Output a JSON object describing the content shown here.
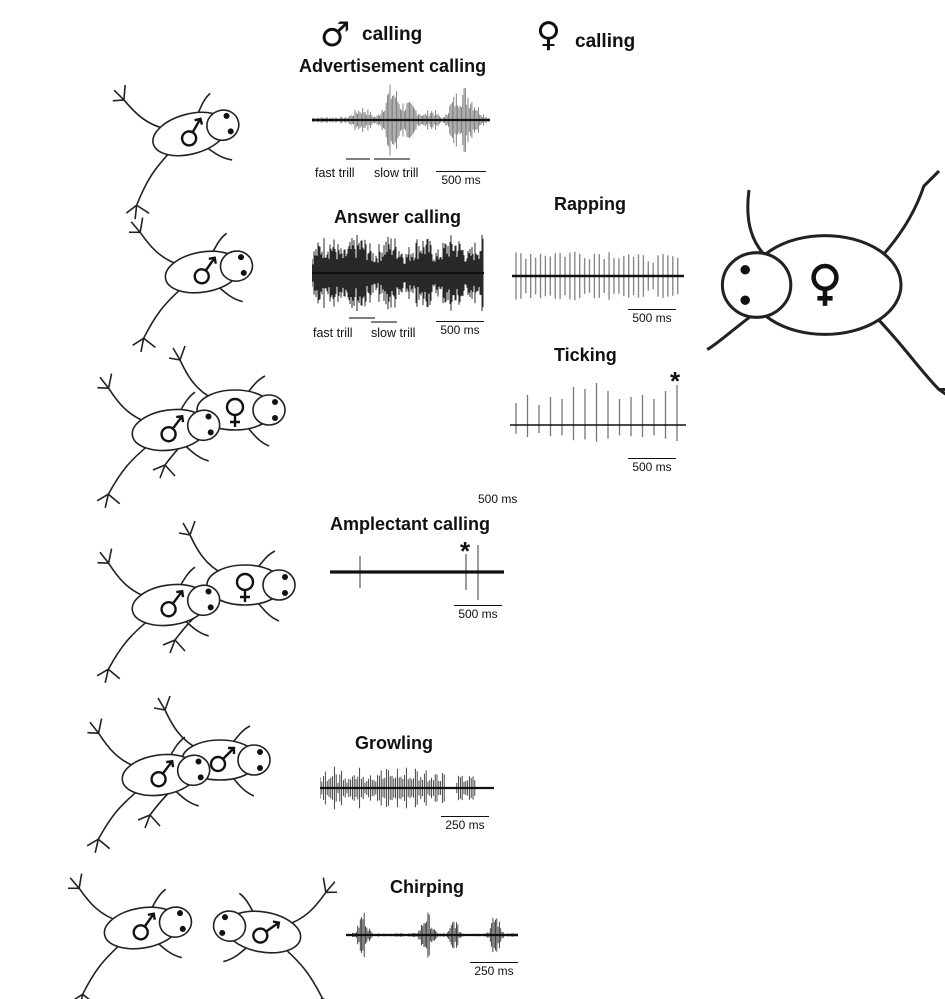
{
  "legend": {
    "male_symbol": "♂",
    "male_label": "calling",
    "female_symbol": "♀",
    "female_label": "calling"
  },
  "calls": {
    "advertisement": {
      "title": "Advertisement calling",
      "fast": "fast trill",
      "slow": "slow trill",
      "scale": "500 ms"
    },
    "answer": {
      "title": "Answer calling",
      "fast": "fast trill",
      "slow": "slow trill",
      "scale": "500 ms"
    },
    "rapping": {
      "title": "Rapping",
      "scale": "500 ms"
    },
    "ticking": {
      "title": "Ticking",
      "scale": "500 ms",
      "star": "*"
    },
    "stray_scale": "500 ms",
    "amplectant": {
      "title": "Amplectant calling",
      "scale": "500 ms",
      "star": "*"
    },
    "growling": {
      "title": "Growling",
      "scale": "250 ms"
    },
    "chirping": {
      "title": "Chirping",
      "scale": "250 ms"
    }
  },
  "colors": {
    "ink": "#111111",
    "gray_trace": "#8a8a8a",
    "background": "#ffffff"
  }
}
